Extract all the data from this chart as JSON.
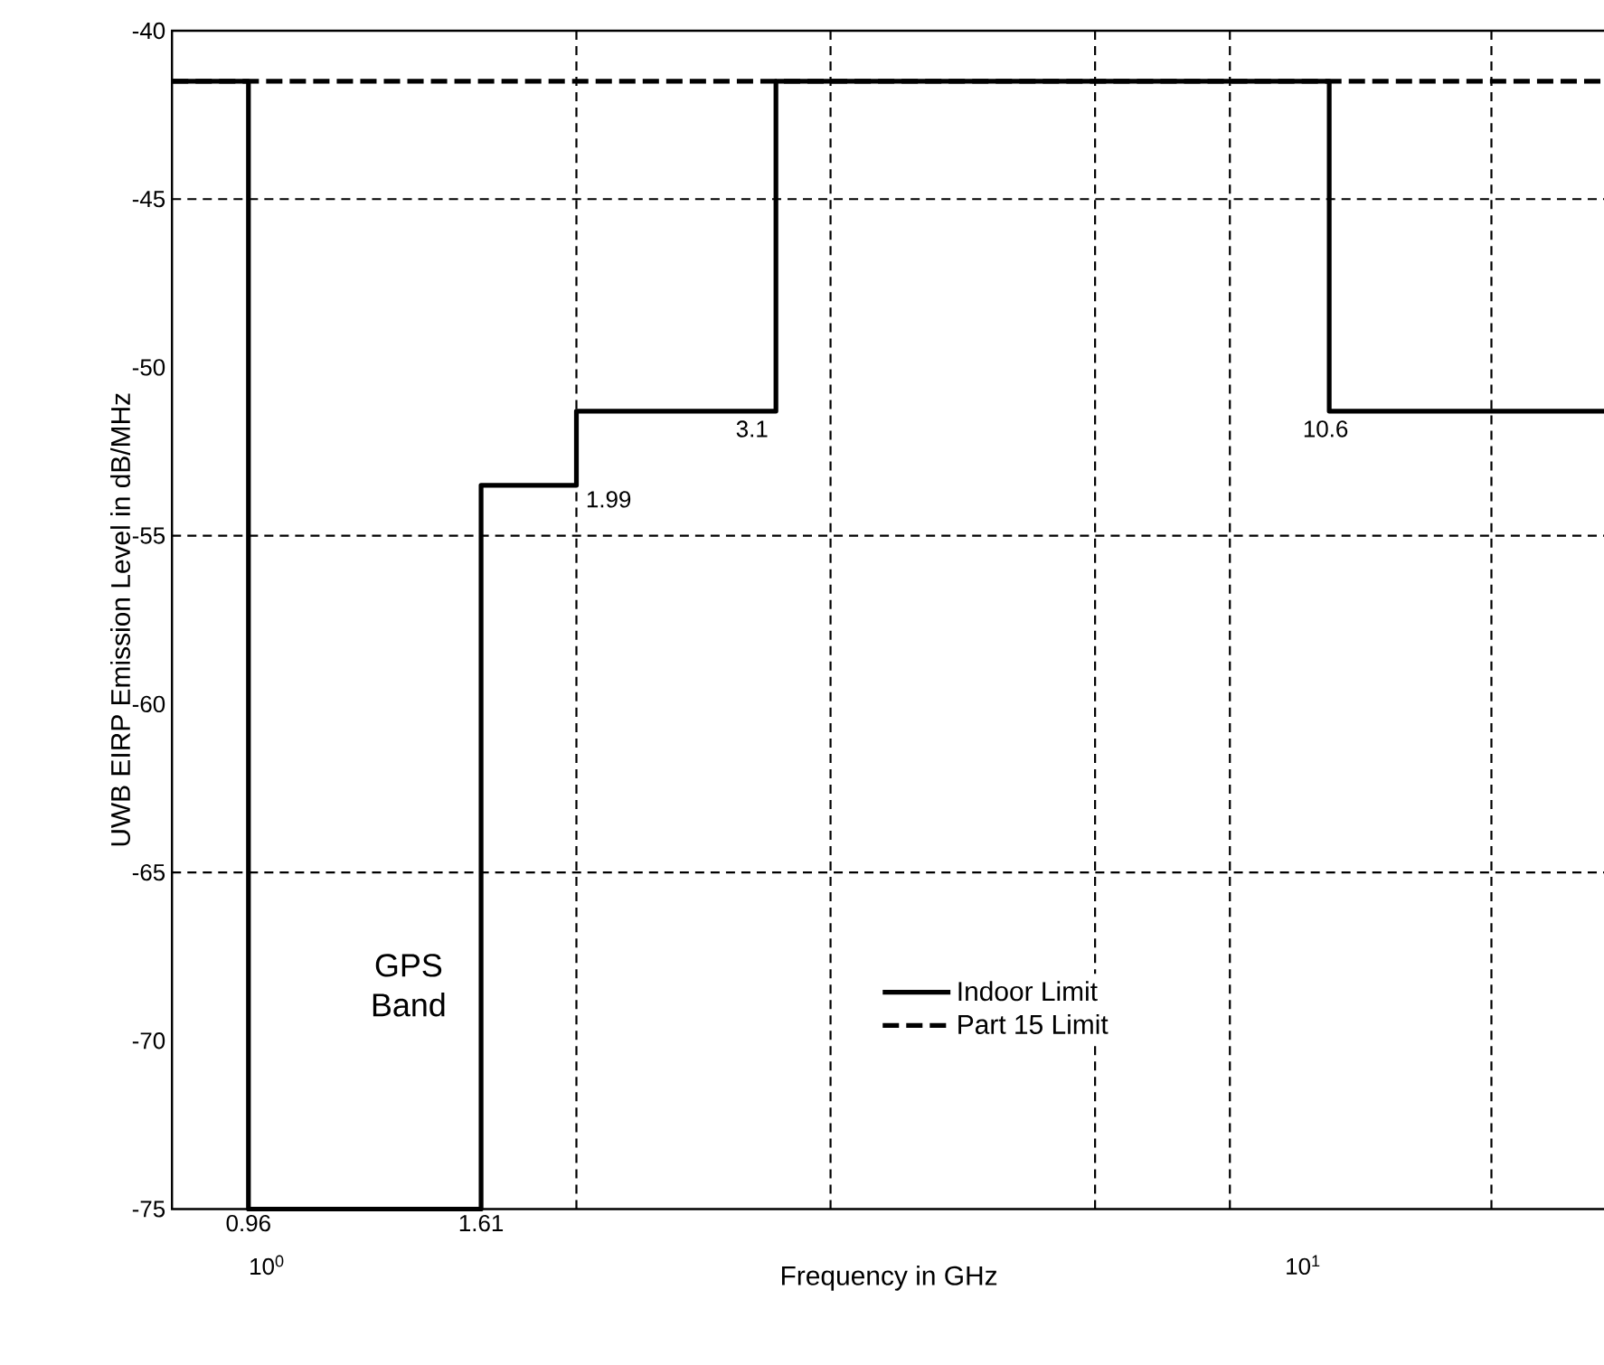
{
  "chart_data": {
    "type": "line",
    "xlabel": "Frequency in GHz",
    "ylabel": "UWB EIRP Emission Level in dB/MHz",
    "log": "x",
    "xlim": [
      0.81,
      19.6
    ],
    "ylim": [
      -75,
      -40
    ],
    "xticks": [
      {
        "value": 1,
        "label": "10$^{0}$"
      },
      {
        "value": 10,
        "label": "10$^{1}$"
      }
    ],
    "yticks": [
      -40,
      -45,
      -50,
      -55,
      -60,
      -65,
      -70,
      -75
    ],
    "series": [
      {
        "name": "Indoor Limit",
        "color": "#000000",
        "line_style": "solid",
        "x": [
          0.81,
          0.96,
          0.96,
          1.61,
          1.61,
          1.99,
          1.99,
          3.1,
          3.1,
          10.6,
          10.6,
          19.6
        ],
        "values": [
          -41.5,
          -41.5,
          -75,
          -75,
          -53.5,
          -53.5,
          -51.3,
          -51.3,
          -41.5,
          -41.5,
          -51.3,
          -51.3
        ]
      },
      {
        "name": "Part 15 Limit",
        "color": "#000000",
        "line_style": "dashed",
        "x": [
          0.81,
          19.6
        ],
        "values": [
          -41.5,
          -41.5
        ]
      }
    ],
    "ref_lines": [
      {
        "axis": "y",
        "value": -45,
        "color": "#000000",
        "line_style": "dashed"
      },
      {
        "axis": "y",
        "value": -55,
        "color": "#000000",
        "line_style": "dashed"
      },
      {
        "axis": "y",
        "value": -65,
        "color": "#000000",
        "line_style": "dashed"
      },
      {
        "axis": "x",
        "value": 1.99,
        "color": "#000000",
        "line_style": "dashed"
      },
      {
        "axis": "x",
        "value": 3.5,
        "color": "#000000",
        "line_style": "dashed"
      },
      {
        "axis": "x",
        "value": 6.3,
        "color": "#000000",
        "line_style": "dashed"
      },
      {
        "axis": "x",
        "value": 8.5,
        "color": "#000000",
        "line_style": "dashed"
      },
      {
        "axis": "x",
        "value": 15.2,
        "color": "#000000",
        "line_style": "dashed"
      }
    ],
    "annotations": [
      "GPS Band",
      {
        "text": "0.96",
        "x": 0.96,
        "y": -75
      },
      {
        "text": "1.61",
        "x": 1.61,
        "y": -75
      },
      {
        "text": "1.99",
        "x": 1.99,
        "y": -53.5
      },
      {
        "text": "3.1",
        "x": 3.1,
        "y": -51.3
      },
      {
        "text": "10.6",
        "x": 10.6,
        "y": -51.3
      }
    ],
    "legend": "bottom"
  }
}
